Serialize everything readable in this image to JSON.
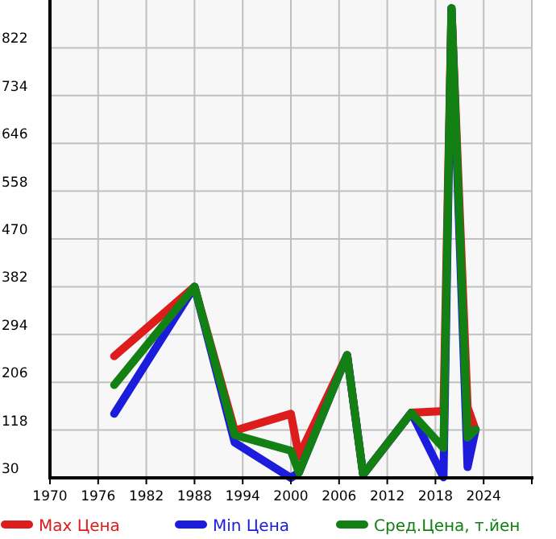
{
  "chart_data": {
    "type": "line",
    "x": [
      1978,
      1988,
      1993,
      2000,
      2001,
      2007,
      2009,
      2015,
      2019,
      2020,
      2022,
      2023
    ],
    "series": [
      {
        "name": "Max Цена",
        "color": "#dd1c1c",
        "values": [
          254,
          382,
          117,
          148,
          70,
          256,
          36,
          150,
          153,
          895,
          160,
          118
        ]
      },
      {
        "name": "Min Цена",
        "color": "#1c1cdd",
        "values": [
          148,
          382,
          95,
          30,
          40,
          256,
          36,
          150,
          31,
          895,
          50,
          119
        ]
      },
      {
        "name": "Сред.Цена, т.йен",
        "color": "#128012",
        "values": [
          201,
          382,
          109,
          80,
          40,
          256,
          36,
          150,
          85,
          895,
          104,
          119
        ]
      }
    ],
    "xlim": [
      1970,
      2030
    ],
    "xticks": [
      1970,
      1976,
      1982,
      1988,
      1994,
      2000,
      2006,
      2012,
      2018,
      2024,
      {
        "value": 2030,
        "label": null
      }
    ],
    "ylim": [
      30,
      910
    ],
    "yticks": [
      30,
      118,
      206,
      294,
      382,
      470,
      558,
      646,
      734,
      822
    ],
    "grid": true,
    "legend": "bottom",
    "line_style": "solid"
  }
}
